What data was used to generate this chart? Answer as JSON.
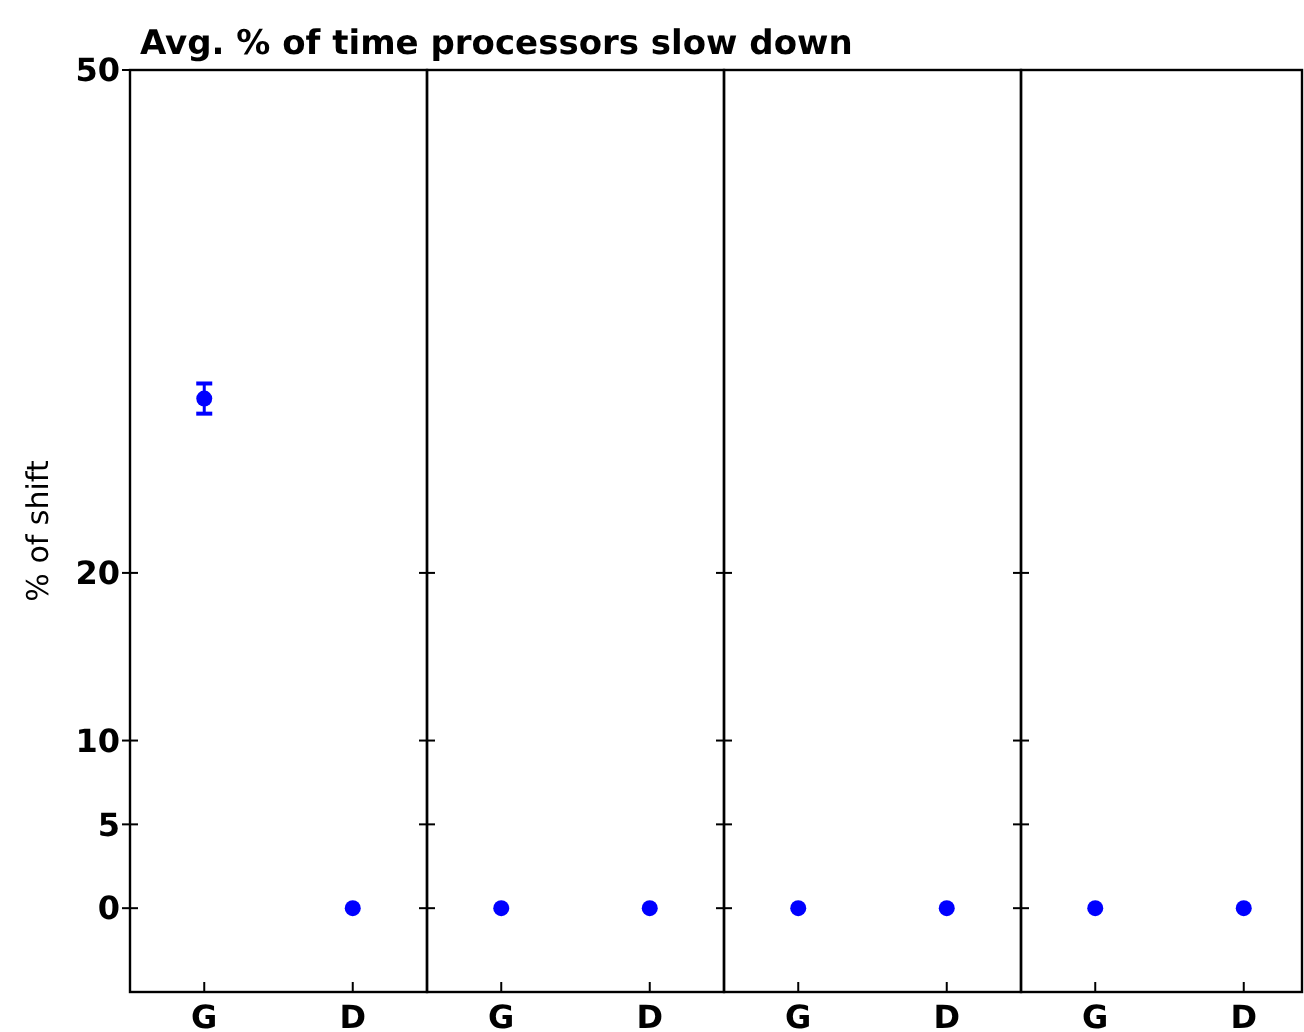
{
  "chart_data": [
    {
      "type": "scatter",
      "title": "Avg. % of time processors slow down",
      "ylabel": "% of shift",
      "categories": [
        "G",
        "D"
      ],
      "series": [
        {
          "color": "#0000ff",
          "values": [
            30.4,
            0
          ],
          "errors": [
            0.9,
            null
          ]
        }
      ],
      "ylim": [
        -5,
        50
      ],
      "yticks": [
        0,
        5,
        10,
        20,
        50
      ],
      "marker": "circle",
      "grid": false
    },
    {
      "type": "scatter",
      "categories": [
        "G",
        "D"
      ],
      "series": [
        {
          "color": "#0000ff",
          "values": [
            0,
            0
          ]
        }
      ],
      "ylim": [
        -5,
        50
      ],
      "yticks": [
        0,
        5,
        10,
        20,
        50
      ],
      "tick_labels": "x",
      "marker": "circle",
      "grid": false
    },
    {
      "type": "scatter",
      "categories": [
        "G",
        "D"
      ],
      "series": [
        {
          "color": "#0000ff",
          "values": [
            0,
            0
          ]
        }
      ],
      "ylim": [
        -5,
        50
      ],
      "yticks": [
        0,
        5,
        10,
        20,
        50
      ],
      "tick_labels": "x",
      "marker": "circle",
      "grid": false
    },
    {
      "type": "scatter",
      "categories": [
        "G",
        "D"
      ],
      "series": [
        {
          "color": "#0000ff",
          "values": [
            0,
            0
          ]
        }
      ],
      "ylim": [
        -5,
        50
      ],
      "yticks": [
        0,
        5,
        10,
        20,
        50
      ],
      "tick_labels": "x",
      "marker": "circle",
      "grid": false
    }
  ]
}
